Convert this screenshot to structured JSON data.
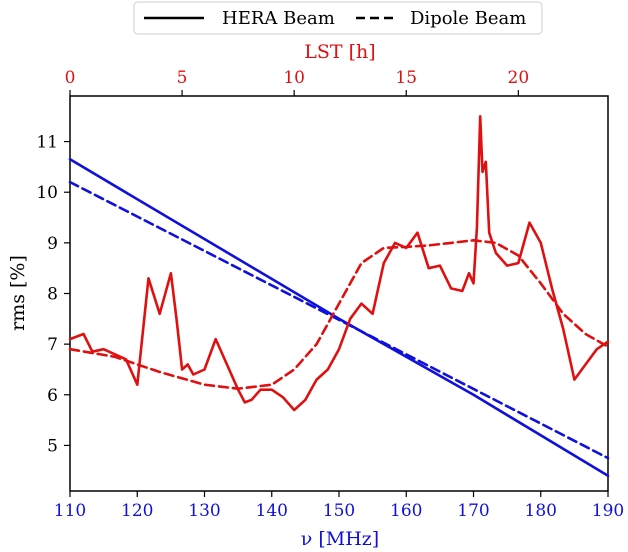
{
  "chart_data": {
    "type": "line",
    "legend": {
      "placement": "top-center",
      "entries": [
        {
          "label": "HERA Beam",
          "linestyle": "solid"
        },
        {
          "label": "Dipole Beam",
          "linestyle": "dashed"
        }
      ]
    },
    "x_axis": {
      "label": "ν [MHz]",
      "range": [
        110,
        190
      ],
      "ticks": [
        "110",
        "120",
        "130",
        "140",
        "150",
        "160",
        "170",
        "180",
        "190"
      ],
      "color": "#1010dd"
    },
    "x_top_axis": {
      "label": "LST [h]",
      "range": [
        0,
        24
      ],
      "ticks": [
        "0",
        "5",
        "10",
        "15",
        "20"
      ],
      "color": "#e01010"
    },
    "y_axis": {
      "label": "rms [%]",
      "range": [
        4.1,
        11.9
      ],
      "ticks": [
        "5",
        "6",
        "7",
        "8",
        "9",
        "10",
        "11"
      ]
    },
    "grid": false,
    "series": [
      {
        "name": "HERA Beam",
        "axis": "frequency",
        "color": "#1010dd",
        "dash": "solid",
        "x": [
          110,
          150,
          170,
          190
        ],
        "y": [
          10.65,
          7.5,
          6.0,
          4.4
        ]
      },
      {
        "name": "Dipole Beam",
        "axis": "frequency",
        "color": "#1010dd",
        "dash": "dashed",
        "x": [
          110,
          150,
          190
        ],
        "y": [
          10.2,
          7.48,
          4.75
        ]
      },
      {
        "name": "HERA Beam",
        "axis": "lst",
        "color": "#e01010",
        "dash": "solid",
        "x": [
          0,
          0.6,
          1.0,
          1.5,
          2.0,
          2.5,
          3.0,
          3.5,
          4.0,
          4.5,
          4.75,
          5.0,
          5.25,
          5.5,
          6.0,
          6.5,
          7.0,
          7.5,
          7.8,
          8.1,
          8.5,
          9.0,
          9.5,
          10.0,
          10.5,
          11.0,
          11.5,
          12.0,
          12.5,
          13.0,
          13.5,
          14.0,
          14.5,
          15.0,
          15.5,
          16.0,
          16.5,
          17.0,
          17.5,
          17.8,
          18.0,
          18.15,
          18.3,
          18.4,
          18.55,
          18.7,
          19.0,
          19.5,
          20.0,
          20.5,
          21.0,
          21.5,
          22.0,
          22.5,
          23.0,
          23.5,
          24.0
        ],
        "y": [
          7.1,
          7.2,
          6.85,
          6.9,
          6.8,
          6.7,
          6.2,
          8.3,
          7.6,
          8.4,
          7.5,
          6.5,
          6.6,
          6.4,
          6.5,
          7.1,
          6.6,
          6.1,
          5.85,
          5.9,
          6.1,
          6.1,
          5.95,
          5.7,
          5.9,
          6.3,
          6.5,
          6.9,
          7.5,
          7.8,
          7.6,
          8.6,
          9.0,
          8.9,
          9.2,
          8.5,
          8.55,
          8.1,
          8.05,
          8.4,
          8.2,
          9.3,
          11.5,
          10.4,
          10.6,
          9.2,
          8.8,
          8.55,
          8.6,
          9.4,
          9.0,
          8.1,
          7.3,
          6.3,
          6.6,
          6.9,
          7.05
        ]
      },
      {
        "name": "Dipole Beam",
        "axis": "lst",
        "color": "#e01010",
        "dash": "dashed",
        "x": [
          0,
          2,
          4,
          6,
          7.5,
          9,
          10,
          11,
          12,
          13,
          14,
          15,
          16,
          17,
          18,
          19,
          20,
          21,
          22,
          23,
          24
        ],
        "y": [
          6.9,
          6.75,
          6.45,
          6.2,
          6.12,
          6.2,
          6.5,
          7.0,
          7.8,
          8.6,
          8.9,
          8.92,
          8.95,
          9.0,
          9.05,
          9.0,
          8.75,
          8.2,
          7.6,
          7.2,
          6.95
        ]
      }
    ]
  }
}
